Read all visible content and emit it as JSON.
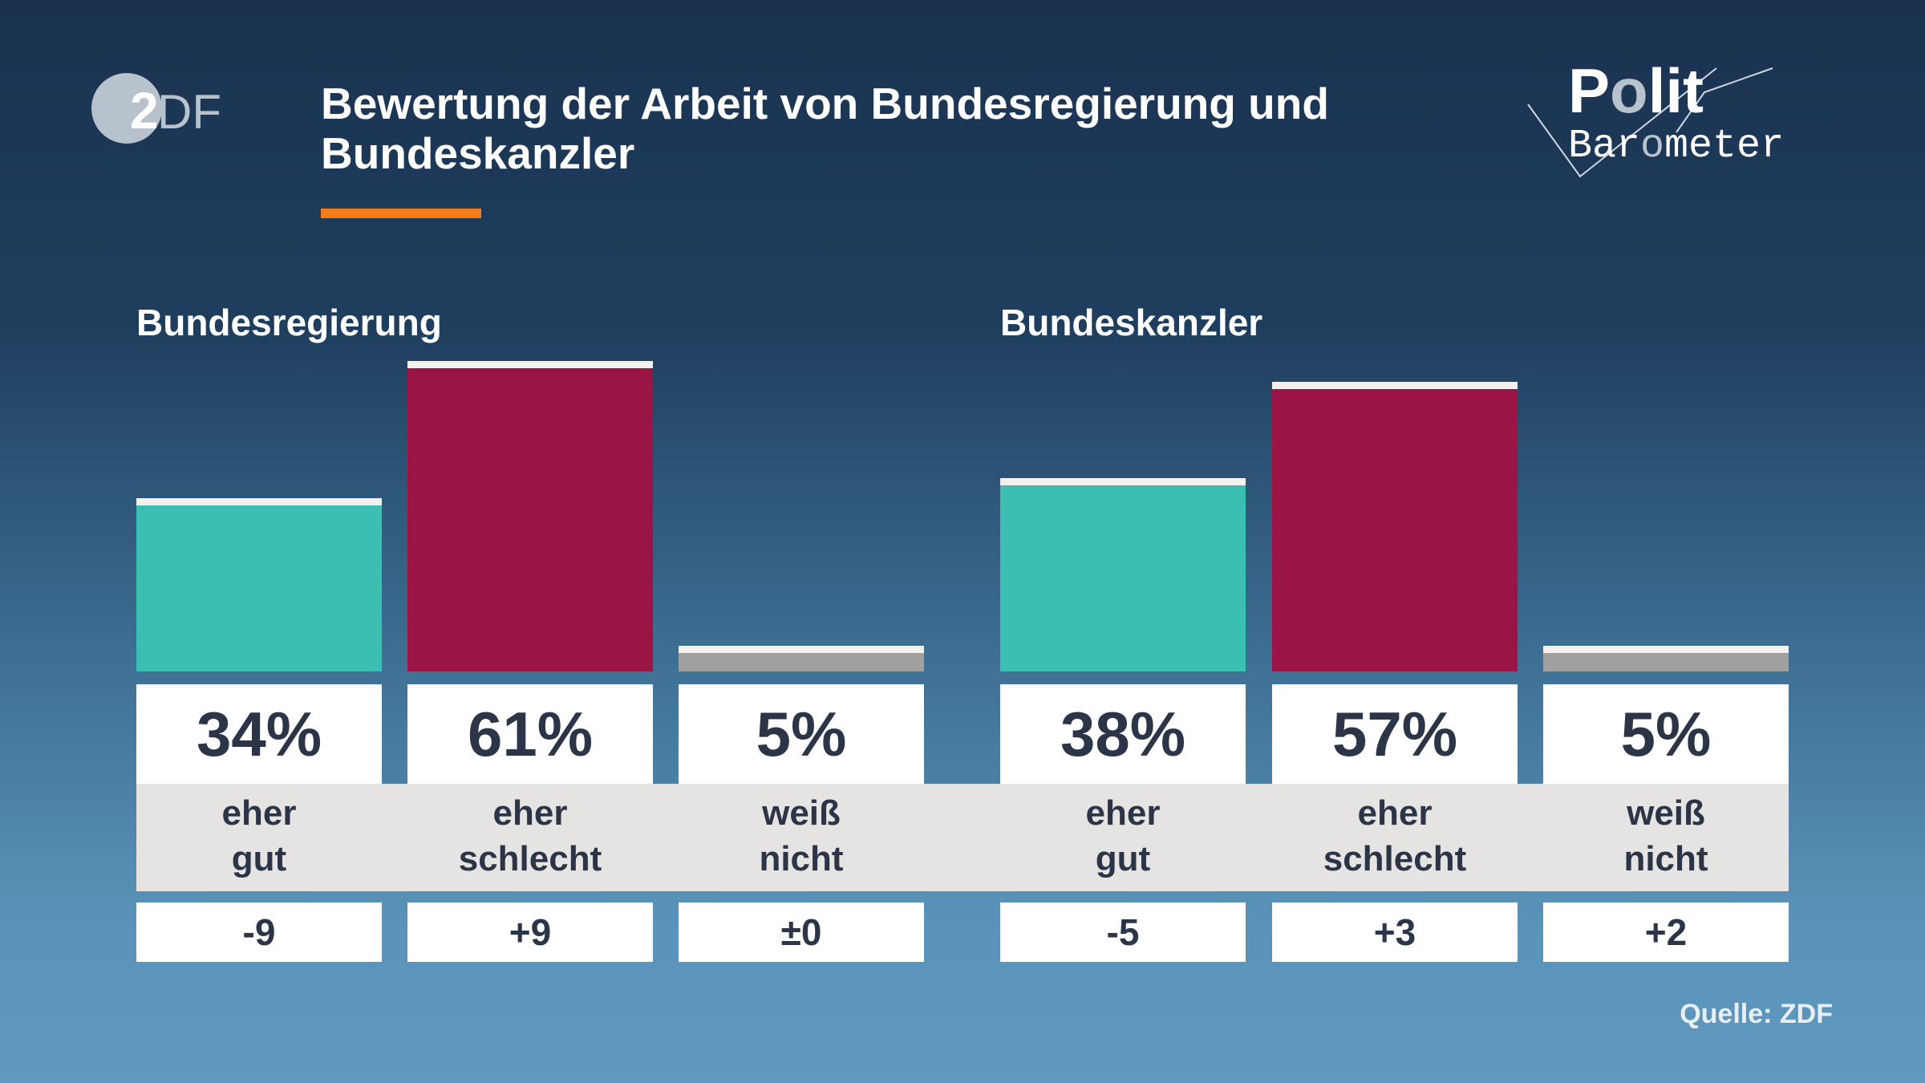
{
  "header": {
    "title": "Bewertung der Arbeit von Bundesregierung und Bundeskanzler",
    "logo_left": "ZDF",
    "logo_right": "Polit Barometer",
    "accent_color": "#f47d1c"
  },
  "source": "Quelle: ZDF",
  "chart_data": [
    {
      "type": "bar",
      "title": "Bundesregierung",
      "categories": [
        "eher gut",
        "eher schlecht",
        "weiß nicht"
      ],
      "values": [
        34,
        61,
        5
      ],
      "value_labels": [
        "34%",
        "61%",
        "5%"
      ],
      "changes": [
        "-9",
        "+9",
        "±0"
      ],
      "colors": [
        "#3bbfb3",
        "#9a1545",
        "#a0a0a0"
      ],
      "ylim": [
        0,
        100
      ]
    },
    {
      "type": "bar",
      "title": "Bundeskanzler",
      "categories": [
        "eher gut",
        "eher schlecht",
        "weiß nicht"
      ],
      "values": [
        38,
        57,
        5
      ],
      "value_labels": [
        "38%",
        "57%",
        "5%"
      ],
      "changes": [
        "-5",
        "+3",
        "+2"
      ],
      "colors": [
        "#3bbfb3",
        "#9a1545",
        "#a0a0a0"
      ],
      "ylim": [
        0,
        100
      ]
    }
  ]
}
